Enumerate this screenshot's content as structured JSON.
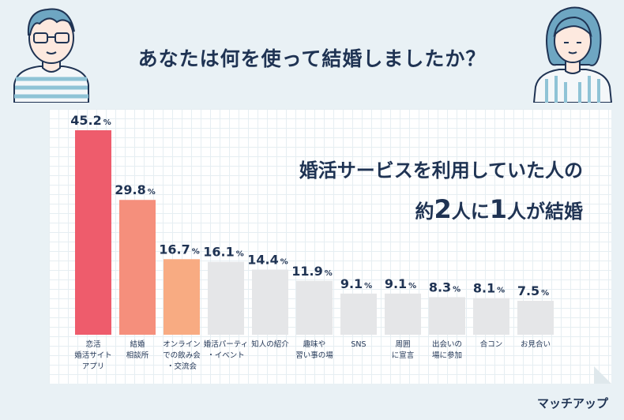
{
  "title": "あなたは何を使って結婚しましたか？",
  "headline": {
    "line1": "婚活サービスを利用していた人の",
    "line2_prefix": "約",
    "line2_num1": "2",
    "line2_mid": "人に",
    "line2_num2": "1",
    "line2_suffix": "人が結婚"
  },
  "logo": "マッチアップ",
  "colors": {
    "bar_top": "#ee5c6c",
    "bar_second": "#f58f7c",
    "bar_third": "#f8ab82",
    "bar_rest": "#e5e6e8",
    "text": "#1f3353"
  },
  "chart_data": {
    "type": "bar",
    "unit": "%",
    "ylim": [
      0,
      45.2
    ],
    "categories": [
      "恋活\n婚活サイト\nアプリ",
      "結婚\n相談所",
      "オンライン\nでの飲み会\n・交流会",
      "婚活パーティ\n・イベント",
      "知人の紹介",
      "趣味や\n習い事の場",
      "SNS",
      "周囲\nに宣言",
      "出会いの\n場に参加",
      "合コン",
      "お見合い"
    ],
    "values": [
      45.2,
      29.8,
      16.7,
      16.1,
      14.4,
      11.9,
      9.1,
      9.1,
      8.3,
      8.1,
      7.5
    ],
    "value_labels": [
      "45.2",
      "29.8",
      "16.7",
      "16.1",
      "14.4",
      "11.9",
      "9.1",
      "9.1",
      "8.3",
      "8.1",
      "7.5"
    ]
  }
}
